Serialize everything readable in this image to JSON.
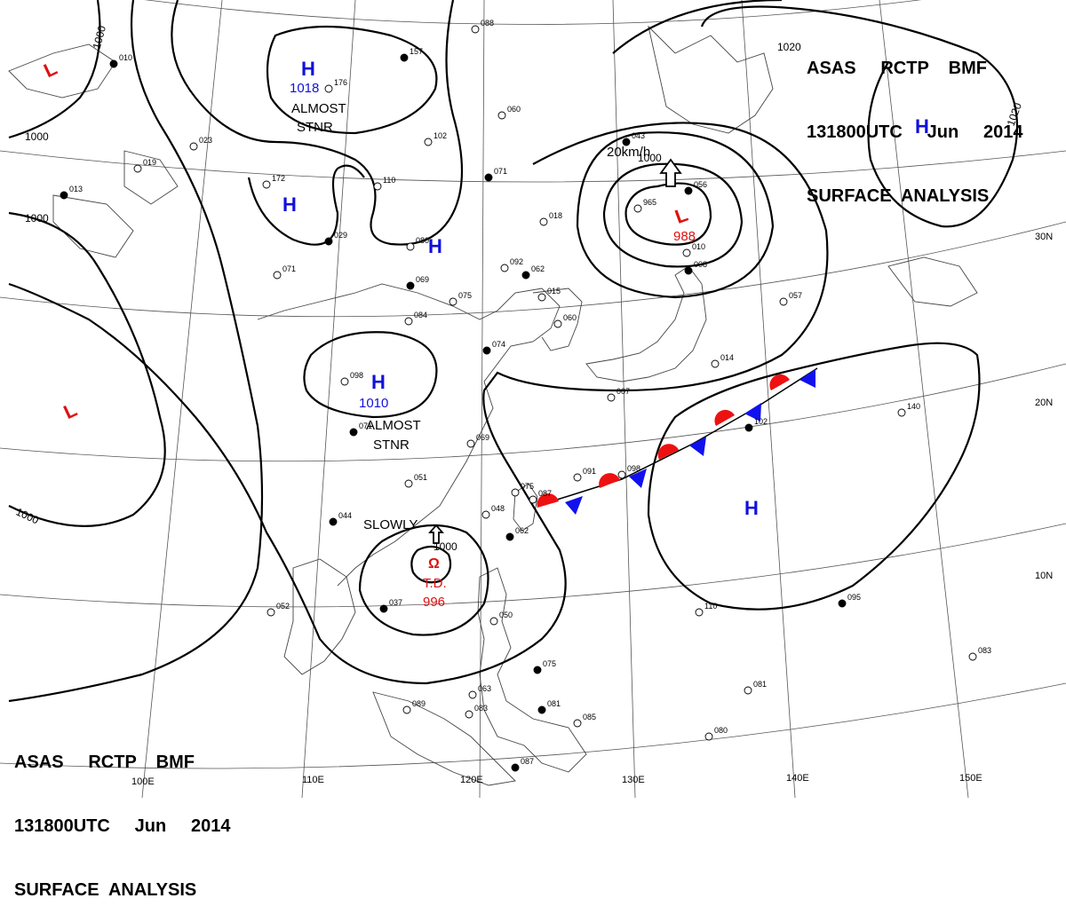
{
  "header_top": {
    "line1": "ASAS     RCTP    BMF",
    "line2": "131800UTC     Jun     2014",
    "line3": "SURFACE  ANALYSIS"
  },
  "header_bottom": {
    "line1": "ASAS     RCTP    BMF",
    "line2": "131800UTC     Jun     2014",
    "line3": "SURFACE  ANALYSIS"
  },
  "colors": {
    "high": "#1010dd",
    "low": "#dd1111",
    "isobar": "#000000",
    "front_warm": "#ee1111",
    "front_cold": "#1111ee"
  },
  "isobar_labels": [
    "1000",
    "1000",
    "1000",
    "1000",
    "1020",
    "1020",
    "1000",
    "1000"
  ],
  "pressure_centers": [
    {
      "type": "H",
      "value": "1018",
      "note": "ALMOST\nSTNR"
    },
    {
      "type": "H",
      "value": "",
      "note": ""
    },
    {
      "type": "H",
      "value": "",
      "note": ""
    },
    {
      "type": "H",
      "value": "1010",
      "note": "ALMOST\nSTNR"
    },
    {
      "type": "H",
      "value": "",
      "note": ""
    },
    {
      "type": "H",
      "value": "",
      "note": ""
    },
    {
      "type": "L",
      "value": "",
      "note": ""
    },
    {
      "type": "L",
      "value": "",
      "note": ""
    },
    {
      "type": "L",
      "value": "988",
      "note": ""
    },
    {
      "type": "TD",
      "value": "996",
      "note": "SLOWLY"
    }
  ],
  "td_label": "T.D.",
  "low_motion": "20km/h",
  "lat_labels": [
    "30N",
    "20N",
    "10N"
  ],
  "lon_labels": [
    "100E",
    "110E",
    "120E",
    "130E",
    "140E",
    "150E"
  ],
  "stations": [
    "010",
    "088",
    "176",
    "157",
    "060",
    "102",
    "043",
    "023",
    "019",
    "013",
    "172",
    "110",
    "071",
    "018",
    "965",
    "029",
    "080",
    "092",
    "062",
    "015",
    "071",
    "069",
    "084",
    "075",
    "074",
    "060",
    "007",
    "056",
    "057",
    "098",
    "071",
    "069",
    "051",
    "044",
    "075",
    "048",
    "062",
    "091",
    "098",
    "102",
    "140",
    "052",
    "037",
    "087",
    "050",
    "075",
    "063",
    "089",
    "081",
    "085",
    "083",
    "087",
    "080",
    "081",
    "095",
    "110",
    "083",
    "008",
    "010",
    "014"
  ]
}
